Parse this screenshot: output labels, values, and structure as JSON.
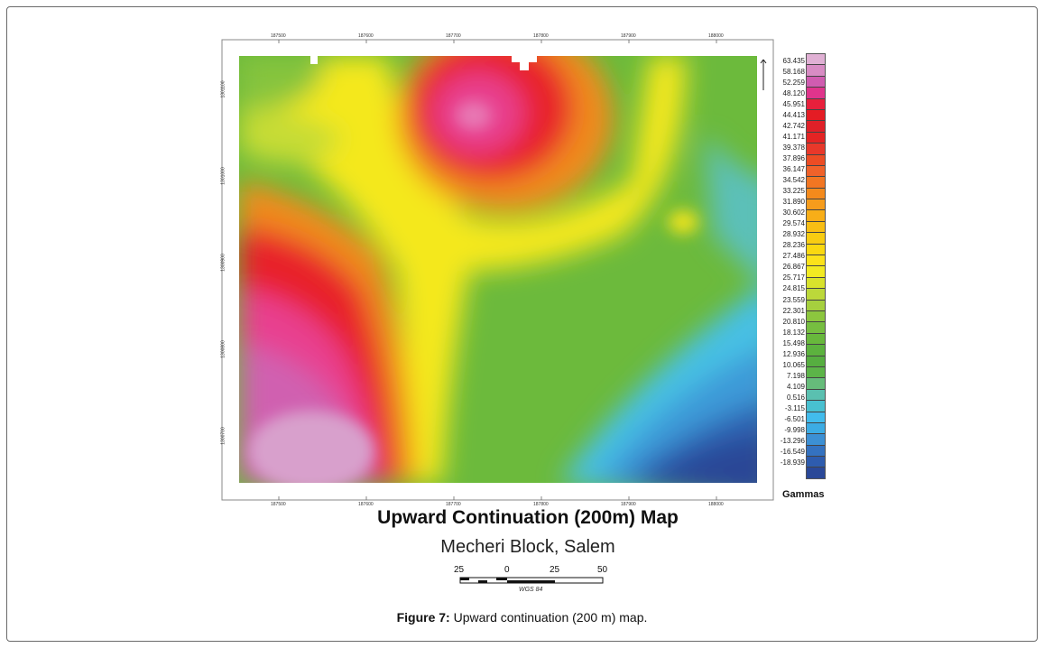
{
  "map": {
    "title": "Upward Continuation (200m) Map",
    "subtitle": "Mecheri Block, Salem",
    "x_ticks": [
      "187500",
      "187600",
      "187700",
      "187800",
      "187900",
      "188000"
    ],
    "y_ticks": [
      "1301100",
      "1301000",
      "1300900",
      "1300800",
      "1300700"
    ],
    "palette": {
      "high": "#d89ac8",
      "magenta": "#e8408f",
      "red": "#e8202c",
      "orange": "#f08a1e",
      "yellow": "#f6e61a",
      "green": "#6cba3c",
      "cyan": "#3fbde8",
      "blue": "#2c58a8",
      "darkblue": "#2a4696"
    }
  },
  "legend": {
    "title": "Gammas",
    "values": [
      "63.435",
      "58.168",
      "52.259",
      "48.120",
      "45.951",
      "44.413",
      "42.742",
      "41.171",
      "39.378",
      "37.896",
      "36.147",
      "34.542",
      "33.225",
      "31.890",
      "30.602",
      "29.574",
      "28.932",
      "28.236",
      "27.486",
      "26.867",
      "25.717",
      "24.815",
      "23.559",
      "22.301",
      "20.810",
      "18.132",
      "15.498",
      "12.936",
      "10.065",
      "7.198",
      "4.109",
      "0.516",
      "-3.115",
      "-6.501",
      "-9.998",
      "-13.296",
      "-16.549",
      "-18.939"
    ],
    "colors": [
      "#e0b0d4",
      "#d88cc4",
      "#d05cb0",
      "#e0348c",
      "#e8203c",
      "#e41c24",
      "#e02028",
      "#e42424",
      "#e8382a",
      "#ec4c24",
      "#f0622a",
      "#f27622",
      "#f48a1c",
      "#f69c1c",
      "#f8ae18",
      "#f8be14",
      "#f8cc12",
      "#fad810",
      "#fce21a",
      "#f2ea22",
      "#d8e22c",
      "#bcd83a",
      "#a6d03e",
      "#8cc63e",
      "#76be40",
      "#68b83c",
      "#5cb23e",
      "#56ae40",
      "#5cb448",
      "#66bc7a",
      "#5ac0b0",
      "#48c0d0",
      "#42bcec",
      "#3cace4",
      "#3c90d4",
      "#3472c0",
      "#2e5cae",
      "#2a4898"
    ]
  },
  "scale_bar": {
    "labels": [
      "25",
      "0",
      "25",
      "50"
    ],
    "datum": "WGS 84"
  },
  "figure_caption": {
    "label": "Figure 7:",
    "text": " Upward continuation (200 m) map."
  }
}
